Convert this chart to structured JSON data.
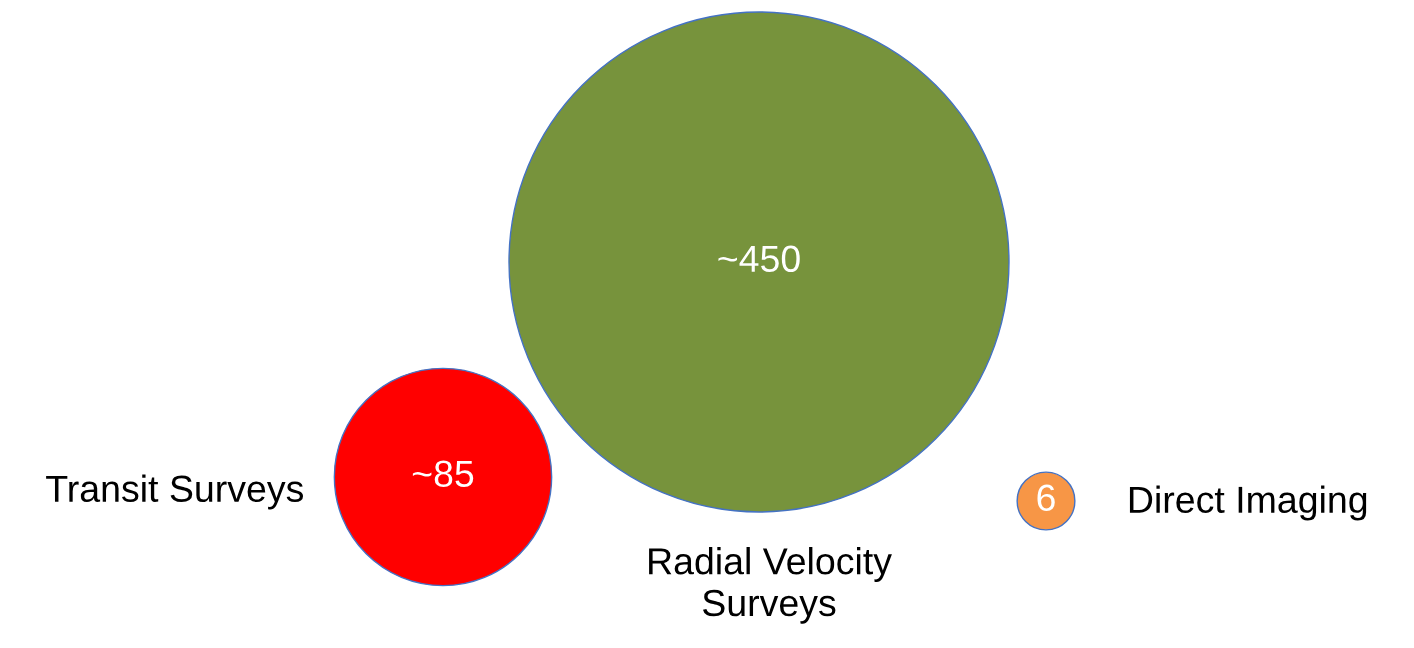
{
  "chart_data": {
    "type": "other",
    "categories": [
      "Transit Surveys",
      "Radial Velocity\nSurveys",
      "Direct Imaging"
    ],
    "values": [
      85,
      450,
      6
    ],
    "value_labels": [
      "~85",
      "~450",
      "6"
    ],
    "colors": [
      "#ff0000",
      "#77933c",
      "#f79646"
    ]
  }
}
